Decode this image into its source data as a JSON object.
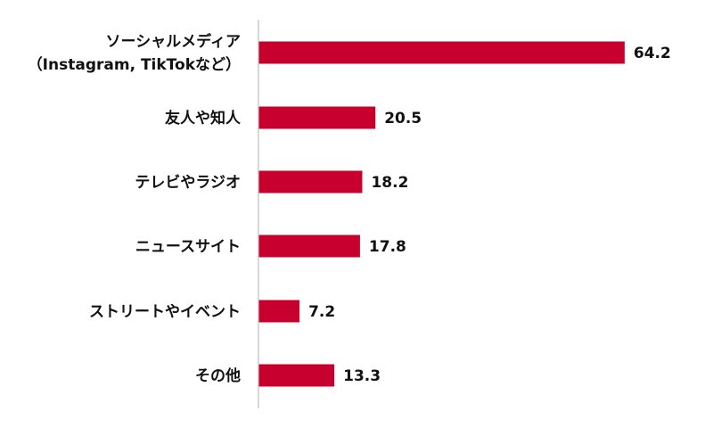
{
  "chart_data": {
    "type": "bar",
    "orientation": "horizontal",
    "categories": [
      [
        "ソーシャルメディア",
        "（Instagram, TikTokなど）"
      ],
      [
        "友人や知人"
      ],
      [
        "テレビやラジオ"
      ],
      [
        "ニュースサイト"
      ],
      [
        "ストリートやイベント"
      ],
      [
        "その他"
      ]
    ],
    "values": [
      64.2,
      20.5,
      18.2,
      17.8,
      7.2,
      13.3
    ],
    "value_labels": [
      "64.2",
      "20.5",
      "18.2",
      "17.8",
      "7.2",
      "13.3"
    ],
    "xlim": [
      0,
      70
    ],
    "bar_color": "#c8002d",
    "axis_color": "#bfbfbf",
    "grid": false,
    "legend": "none"
  }
}
